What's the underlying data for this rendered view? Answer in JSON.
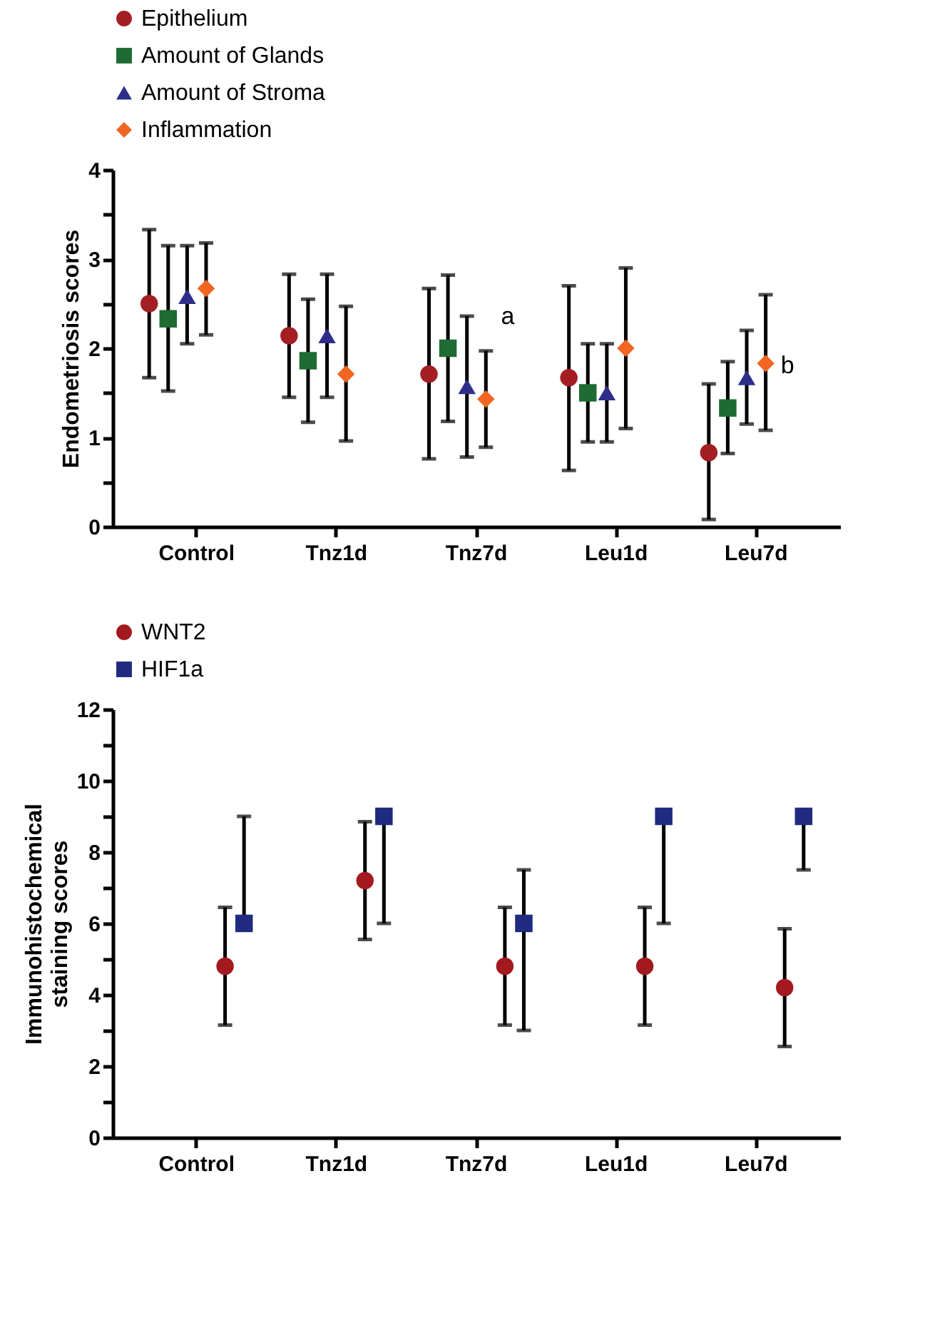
{
  "chart_data": [
    {
      "type": "scatter",
      "ylabel": "Endometriosis scores",
      "categories": [
        "Control",
        "Tnz1d",
        "Tnz7d",
        "Leu1d",
        "Leu7d"
      ],
      "series": [
        {
          "name": "Epithelium",
          "color": "#a31f24",
          "marker": "circle",
          "values": [
            2.5,
            2.14,
            1.71,
            1.67,
            0.83
          ],
          "errors": [
            [
              1.67,
              3.33
            ],
            [
              1.45,
              2.83
            ],
            [
              0.76,
              2.67
            ],
            [
              0.63,
              2.7
            ],
            [
              0.08,
              1.6
            ]
          ]
        },
        {
          "name": " Amount of Glands",
          "color": "#1e6b34",
          "marker": "square",
          "values": [
            2.33,
            1.86,
            2.0,
            1.5,
            1.33
          ],
          "errors": [
            [
              1.52,
              3.15
            ],
            [
              1.17,
              2.55
            ],
            [
              1.18,
              2.82
            ],
            [
              0.95,
              2.05
            ],
            [
              0.82,
              1.85
            ]
          ]
        },
        {
          "name": "Amount of Stroma",
          "color": "#2e2e8a",
          "marker": "triangle",
          "values": [
            2.58,
            2.14,
            1.57,
            1.5,
            1.67
          ],
          "errors": [
            [
              2.05,
              3.15
            ],
            [
              1.45,
              2.83
            ],
            [
              0.78,
              2.36
            ],
            [
              0.95,
              2.05
            ],
            [
              1.15,
              2.2
            ]
          ]
        },
        {
          "name": "Inflammation",
          "color": "#f26522",
          "marker": "diamond",
          "values": [
            2.67,
            1.71,
            1.43,
            2.0,
            1.83
          ],
          "errors": [
            [
              2.15,
              3.18
            ],
            [
              0.96,
              2.47
            ],
            [
              0.89,
              1.97
            ],
            [
              1.1,
              2.9
            ],
            [
              1.08,
              2.6
            ]
          ]
        }
      ],
      "ylim": [
        0,
        4
      ],
      "yticks": [
        0,
        {
          "value": 0.5,
          "label": null
        },
        1,
        {
          "value": 1.5,
          "label": null
        },
        2,
        {
          "value": 2.5,
          "label": null
        },
        3,
        {
          "value": 3.5,
          "label": null
        },
        4
      ],
      "annotations": [
        {
          "text": "a",
          "x": "Tnz7d",
          "y": 2.35
        },
        {
          "text": "b",
          "x": "Leu7d",
          "y": 1.8
        }
      ],
      "legend": "top",
      "grid": false
    },
    {
      "type": "scatter",
      "ylabel": "Immunohistochemical staining scores",
      "categories": [
        "Control",
        "Tnz1d",
        "Tnz7d",
        "Leu1d",
        "Leu7d"
      ],
      "series": [
        {
          "name": "WNT2",
          "color": "#a3191f",
          "marker": "circle",
          "values": [
            4.8,
            7.2,
            4.8,
            4.8,
            4.2
          ],
          "errors": [
            [
              3.15,
              6.45
            ],
            [
              5.55,
              8.85
            ],
            [
              3.15,
              6.45
            ],
            [
              3.15,
              6.45
            ],
            [
              2.55,
              5.85
            ]
          ]
        },
        {
          "name": "HIF1a",
          "color": "#1f2a80",
          "marker": "square",
          "values": [
            6,
            9,
            6,
            9,
            9
          ],
          "errors": [
            [
              6,
              9
            ],
            [
              6,
              9
            ],
            [
              3,
              7.5
            ],
            [
              6,
              9
            ],
            [
              7.5,
              9
            ]
          ]
        }
      ],
      "ylim": [
        0,
        12
      ],
      "yticks": [
        0,
        {
          "value": 1,
          "label": null
        },
        2,
        {
          "value": 3,
          "label": null
        },
        4,
        {
          "value": 5,
          "label": null
        },
        6,
        {
          "value": 7,
          "label": null
        },
        8,
        {
          "value": 9,
          "label": null
        },
        10,
        {
          "value": 11,
          "label": null
        },
        12
      ],
      "legend": "top",
      "grid": false
    }
  ]
}
